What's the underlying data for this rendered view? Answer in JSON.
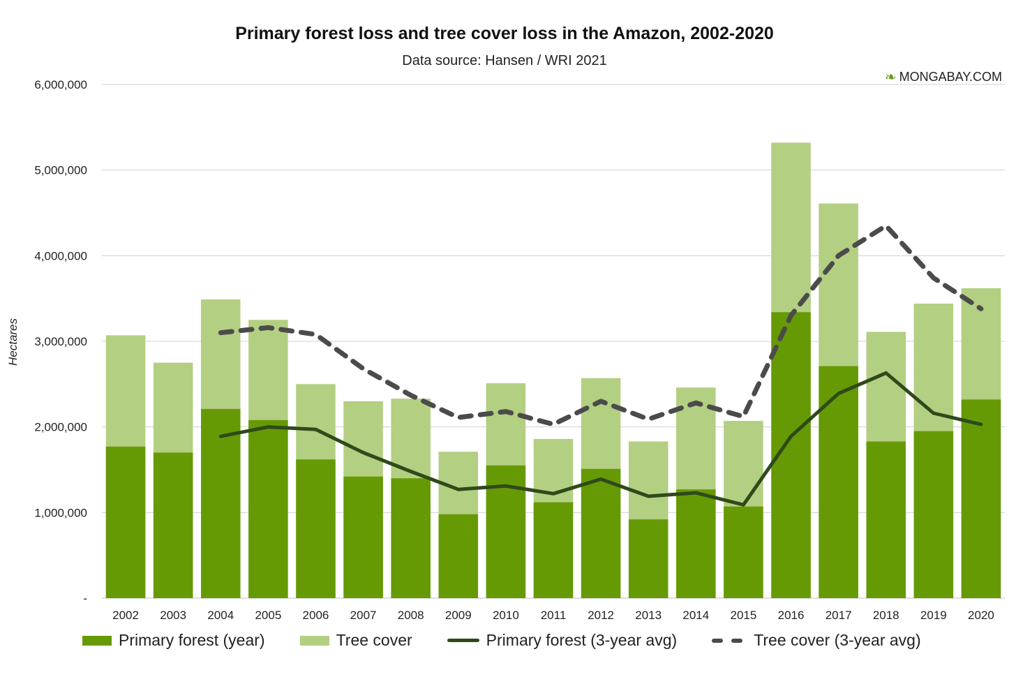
{
  "header": {
    "title": "Primary forest loss and tree cover loss in the Amazon, 2002-2020",
    "subtitle": "Data source: Hansen / WRI 2021",
    "brand": "MONGABAY.COM",
    "brand_icon": "lizard-logo-icon"
  },
  "colors": {
    "primary_bar": "#669a05",
    "tree_bar": "#b3cf82",
    "primary_avg": "#2f4a1a",
    "tree_avg": "#4b4b4b",
    "grid": "#d0d0d0"
  },
  "chart_data": {
    "type": "bar",
    "title": "Primary forest loss and tree cover loss in the Amazon, 2002-2020",
    "subtitle": "Data source: Hansen / WRI 2021",
    "xlabel": "",
    "ylabel": "Hectares",
    "ylim": [
      0,
      6000000
    ],
    "y_ticks": [
      "-",
      "1,000,000",
      "2,000,000",
      "3,000,000",
      "4,000,000",
      "5,000,000",
      "6,000,000"
    ],
    "y_tick_values": [
      0,
      1000000,
      2000000,
      3000000,
      4000000,
      5000000,
      6000000
    ],
    "grid": true,
    "legend_position": "bottom",
    "categories": [
      "2002",
      "2003",
      "2004",
      "2005",
      "2006",
      "2007",
      "2008",
      "2009",
      "2010",
      "2011",
      "2012",
      "2013",
      "2014",
      "2015",
      "2016",
      "2017",
      "2018",
      "2019",
      "2020"
    ],
    "series": [
      {
        "name": "Primary forest (year)",
        "kind": "bar",
        "values": [
          1770000,
          1700000,
          2210000,
          2080000,
          1620000,
          1420000,
          1400000,
          980000,
          1550000,
          1120000,
          1510000,
          920000,
          1270000,
          1070000,
          3340000,
          2710000,
          1830000,
          1950000,
          2320000
        ]
      },
      {
        "name": "Tree cover",
        "kind": "bar",
        "values": [
          3070000,
          2750000,
          3490000,
          3250000,
          2500000,
          2300000,
          2330000,
          1710000,
          2510000,
          1860000,
          2570000,
          1830000,
          2460000,
          2070000,
          5320000,
          4610000,
          3110000,
          3440000,
          3620000
        ]
      },
      {
        "name": "Primary forest (3-year avg)",
        "kind": "line",
        "values": [
          null,
          null,
          1890000,
          2000000,
          1970000,
          1700000,
          1480000,
          1270000,
          1310000,
          1220000,
          1390000,
          1190000,
          1230000,
          1090000,
          1890000,
          2390000,
          2630000,
          2160000,
          2030000
        ]
      },
      {
        "name": "Tree cover (3-year avg)",
        "kind": "dashed-line",
        "values": [
          null,
          null,
          3100000,
          3160000,
          3080000,
          2680000,
          2370000,
          2110000,
          2180000,
          2030000,
          2300000,
          2090000,
          2280000,
          2120000,
          3300000,
          4000000,
          4350000,
          3740000,
          3380000
        ]
      }
    ]
  }
}
